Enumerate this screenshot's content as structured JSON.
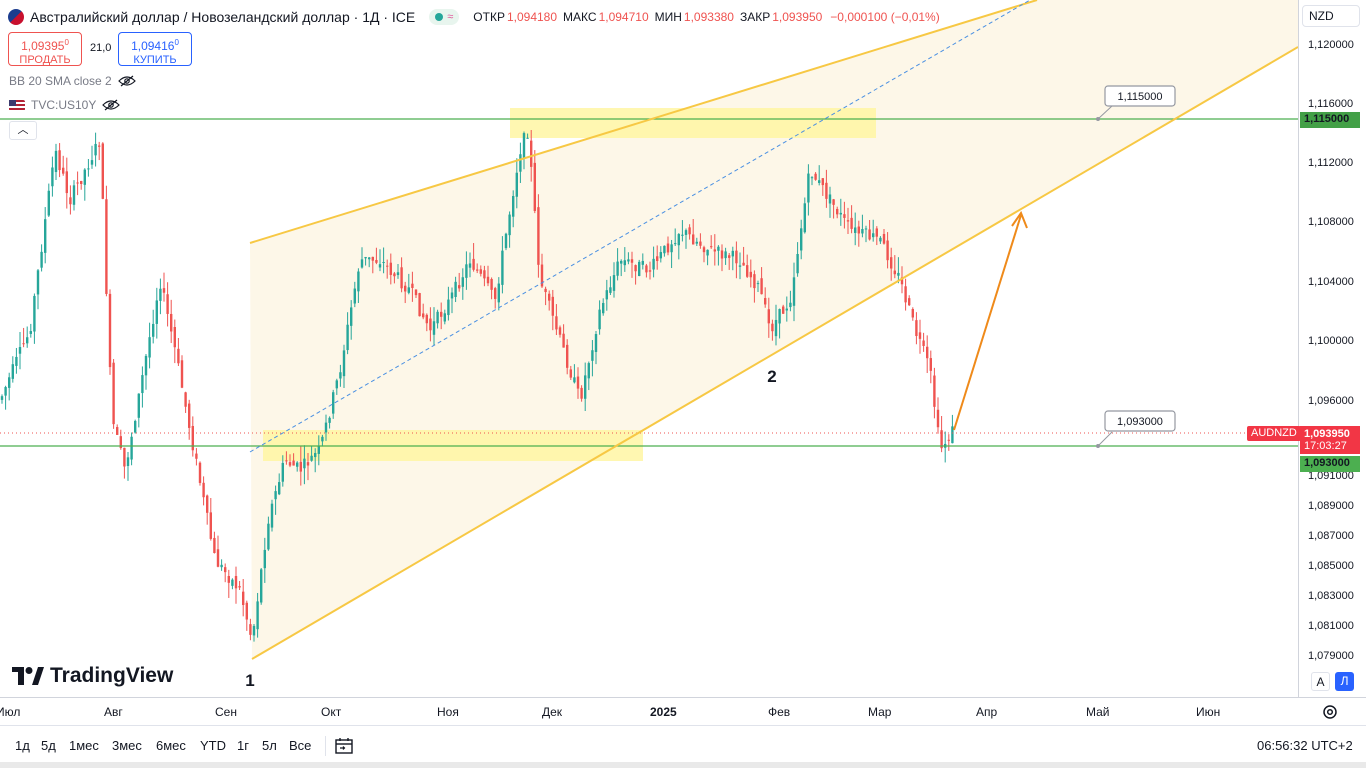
{
  "header": {
    "title": "Австралийский доллар / Новозеландский доллар · 1Д · ICE",
    "ohlc": [
      {
        "label": "ОТКР",
        "value": "1,094180"
      },
      {
        "label": "МАКС",
        "value": "1,094710"
      },
      {
        "label": "МИН",
        "value": "1,093380"
      },
      {
        "label": "ЗАКР",
        "value": "1,093950"
      },
      {
        "label": "",
        "value": "−0,000100 (−0,01%)"
      }
    ]
  },
  "trade": {
    "sell_price": "1,09395",
    "sell_price_sup": "0",
    "sell_label": "ПРОДАТЬ",
    "buy_price": "1,09416",
    "buy_price_sup": "0",
    "buy_label": "КУПИТЬ",
    "spread": "21,0"
  },
  "indicators": [
    {
      "label": "BB 20 SMA close 2"
    },
    {
      "label": "TVC:US10Y"
    }
  ],
  "logo": {
    "text": "TradingView"
  },
  "currency_selector": "NZD",
  "price_axis": {
    "labels": [
      "1,120000",
      "1,116000",
      "1,112000",
      "1,108000",
      "1,104000",
      "1,100000",
      "1,096000",
      "1,091000",
      "1,089000",
      "1,087000",
      "1,085000",
      "1,083000",
      "1,081000",
      "1,079000"
    ],
    "tags": {
      "level_high": "1,115000",
      "current_price": "1,093950",
      "countdown": "17:03:27",
      "level_low": "1,093000",
      "symbol": "AUDNZD"
    }
  },
  "scale_buttons": {
    "auto": "A",
    "log": "Л"
  },
  "time_axis": {
    "labels": [
      {
        "text": "Июл",
        "bold": false
      },
      {
        "text": "Авг",
        "bold": false
      },
      {
        "text": "Сен",
        "bold": false
      },
      {
        "text": "Окт",
        "bold": false
      },
      {
        "text": "Ноя",
        "bold": false
      },
      {
        "text": "Дек",
        "bold": false
      },
      {
        "text": "2025",
        "bold": true
      },
      {
        "text": "Фев",
        "bold": false
      },
      {
        "text": "Мар",
        "bold": false
      },
      {
        "text": "Апр",
        "bold": false
      },
      {
        "text": "Май",
        "bold": false
      },
      {
        "text": "Июн",
        "bold": false
      }
    ]
  },
  "bottom_bar": {
    "ranges": [
      "1д",
      "5д",
      "1мес",
      "3мес",
      "6мес",
      "YTD",
      "1г",
      "5л",
      "Все"
    ],
    "clock": "06:56:32 UTC+2"
  },
  "drawings": {
    "level_callout_high": "1,115000",
    "level_callout_low": "1,093000",
    "point_labels": [
      "1",
      "2"
    ]
  },
  "colors": {
    "up": "#26a69a",
    "down": "#ef5350",
    "channel": "#f7c844",
    "channel_fill": "#fdf6e6",
    "zone": "#fff59d",
    "level": "#4caf50",
    "arrow": "#ef8a1a",
    "midline": "#4a90e2"
  },
  "chart_data": {
    "type": "candlestick",
    "symbol": "AUDNZD",
    "timeframe": "1Д",
    "ylim": [
      1.078,
      1.122
    ],
    "levels": [
      1.115,
      1.093
    ],
    "last_price": 1.09395
  }
}
